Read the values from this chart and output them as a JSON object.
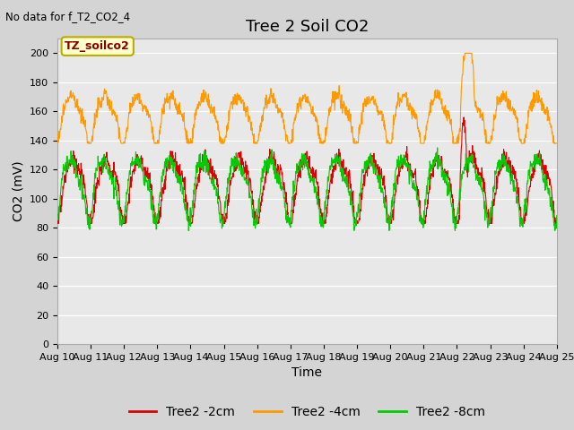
{
  "title": "Tree 2 Soil CO2",
  "no_data_text": "No data for f_T2_CO2_4",
  "xlabel": "Time",
  "ylabel": "CO2 (mV)",
  "ylim": [
    0,
    210
  ],
  "yticks": [
    0,
    20,
    40,
    60,
    80,
    100,
    120,
    140,
    160,
    180,
    200
  ],
  "x_tick_labels": [
    "Aug 10",
    "Aug 11",
    "Aug 12",
    "Aug 13",
    "Aug 14",
    "Aug 15",
    "Aug 16",
    "Aug 17",
    "Aug 18",
    "Aug 19",
    "Aug 20",
    "Aug 21",
    "Aug 22",
    "Aug 23",
    "Aug 24",
    "Aug 25"
  ],
  "legend_box_label": "TZ_soilco2",
  "legend_box_facecolor": "#ffffcc",
  "legend_box_edgecolor": "#bbaa00",
  "line_colors": {
    "2cm": "#dd0000",
    "4cm": "#ff9900",
    "8cm": "#00cc00"
  },
  "legend_labels": [
    "Tree2 -2cm",
    "Tree2 -4cm",
    "Tree2 -8cm"
  ],
  "fig_facecolor": "#d4d4d4",
  "plot_bg_color": "#e8e8e8",
  "grid_color": "#ffffff",
  "title_fontsize": 13,
  "axis_label_fontsize": 10,
  "tick_fontsize": 8,
  "legend_fontsize": 10
}
